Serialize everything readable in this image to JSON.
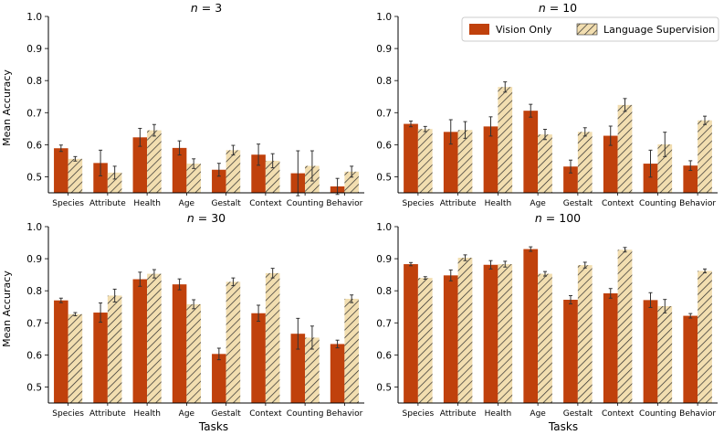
{
  "figure": {
    "shared_ylabel": "Mean Accuracy",
    "shared_xlabel": "Tasks"
  },
  "legend": {
    "location": "top-right of n = 10 panel",
    "entries": [
      {
        "name": "Vision Only",
        "style": "solid",
        "color": "#c0410c"
      },
      {
        "name": "Language Supervision",
        "style": "hatched",
        "color": "#f2deb0"
      }
    ]
  },
  "colors": {
    "vision": "#c0410c",
    "vision_edge": "#9e3205",
    "language_fill": "#f2deb0",
    "hatch": "#2b2b2b",
    "axis": "#000000",
    "errorbar": "#333333"
  },
  "chart_data": [
    {
      "type": "bar",
      "title": "n = 3",
      "title_n": "3",
      "xlabel": "",
      "ylabel": "Mean Accuracy",
      "ylim": [
        0.45,
        1.0
      ],
      "yticks": [
        "0.5",
        "0.6",
        "0.7",
        "0.8",
        "0.9",
        "1.0"
      ],
      "categories": [
        "Species",
        "Attribute",
        "Health",
        "Age",
        "Gestalt",
        "Context",
        "Counting",
        "Behavior"
      ],
      "series": [
        {
          "name": "Vision Only",
          "values": [
            0.589,
            0.543,
            0.623,
            0.59,
            0.522,
            0.569,
            0.511,
            0.47
          ],
          "errors": [
            0.01,
            0.04,
            0.028,
            0.022,
            0.02,
            0.033,
            0.07,
            0.025
          ]
        },
        {
          "name": "Language Supervision",
          "values": [
            0.556,
            0.513,
            0.645,
            0.541,
            0.583,
            0.55,
            0.534,
            0.516
          ],
          "errors": [
            0.007,
            0.02,
            0.018,
            0.015,
            0.015,
            0.022,
            0.047,
            0.017
          ]
        }
      ]
    },
    {
      "type": "bar",
      "title": "n = 10",
      "title_n": "10",
      "xlabel": "",
      "ylabel": "",
      "ylim": [
        0.45,
        1.0
      ],
      "yticks": [
        "0.5",
        "0.6",
        "0.7",
        "0.8",
        "0.9",
        "1.0"
      ],
      "categories": [
        "Species",
        "Attribute",
        "Health",
        "Age",
        "Gestalt",
        "Context",
        "Counting",
        "Behavior"
      ],
      "series": [
        {
          "name": "Vision Only",
          "values": [
            0.665,
            0.64,
            0.657,
            0.706,
            0.532,
            0.628,
            0.541,
            0.535
          ],
          "errors": [
            0.009,
            0.038,
            0.03,
            0.02,
            0.02,
            0.03,
            0.042,
            0.015
          ]
        },
        {
          "name": "Language Supervision",
          "values": [
            0.649,
            0.646,
            0.78,
            0.632,
            0.64,
            0.724,
            0.601,
            0.676
          ],
          "errors": [
            0.008,
            0.026,
            0.016,
            0.016,
            0.013,
            0.02,
            0.038,
            0.013
          ]
        }
      ]
    },
    {
      "type": "bar",
      "title": "n = 30",
      "title_n": "30",
      "xlabel": "Tasks",
      "ylabel": "Mean Accuracy",
      "ylim": [
        0.45,
        1.0
      ],
      "yticks": [
        "0.5",
        "0.6",
        "0.7",
        "0.8",
        "0.9",
        "1.0"
      ],
      "categories": [
        "Species",
        "Attribute",
        "Health",
        "Age",
        "Gestalt",
        "Context",
        "Counting",
        "Behavior"
      ],
      "series": [
        {
          "name": "Vision Only",
          "values": [
            0.77,
            0.732,
            0.836,
            0.82,
            0.603,
            0.73,
            0.666,
            0.634
          ],
          "errors": [
            0.007,
            0.03,
            0.022,
            0.017,
            0.018,
            0.025,
            0.048,
            0.012
          ]
        },
        {
          "name": "Language Supervision",
          "values": [
            0.727,
            0.785,
            0.853,
            0.758,
            0.828,
            0.855,
            0.654,
            0.775
          ],
          "errors": [
            0.005,
            0.02,
            0.013,
            0.014,
            0.012,
            0.015,
            0.036,
            0.012
          ]
        }
      ]
    },
    {
      "type": "bar",
      "title": "n = 100",
      "title_n": "100",
      "xlabel": "Tasks",
      "ylabel": "",
      "ylim": [
        0.45,
        1.0
      ],
      "yticks": [
        "0.5",
        "0.6",
        "0.7",
        "0.8",
        "0.9",
        "1.0"
      ],
      "categories": [
        "Species",
        "Attribute",
        "Health",
        "Age",
        "Gestalt",
        "Context",
        "Counting",
        "Behavior"
      ],
      "series": [
        {
          "name": "Vision Only",
          "values": [
            0.883,
            0.848,
            0.881,
            0.93,
            0.772,
            0.792,
            0.771,
            0.722
          ],
          "errors": [
            0.005,
            0.017,
            0.013,
            0.007,
            0.013,
            0.015,
            0.023,
            0.007
          ]
        },
        {
          "name": "Language Supervision",
          "values": [
            0.84,
            0.903,
            0.883,
            0.853,
            0.88,
            0.928,
            0.752,
            0.862
          ],
          "errors": [
            0.004,
            0.009,
            0.009,
            0.007,
            0.009,
            0.007,
            0.021,
            0.006
          ]
        }
      ]
    }
  ]
}
